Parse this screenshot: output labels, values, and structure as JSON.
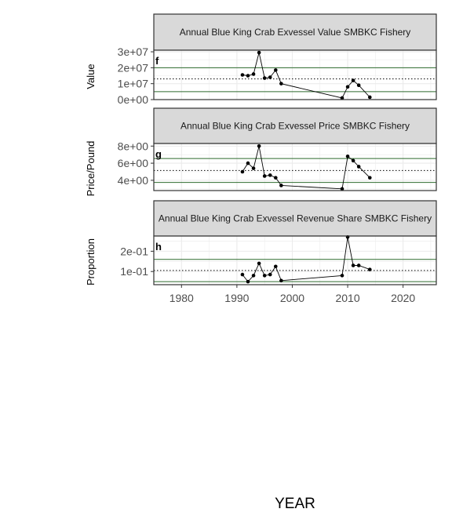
{
  "xlabel": "YEAR",
  "x_ticks": [
    1980,
    1990,
    2000,
    2010,
    2020
  ],
  "xlim": [
    1975,
    2026
  ],
  "colors": {
    "hline": "#2e6b2e",
    "mean_line": "#000000",
    "series": "#000000",
    "strip_fill": "#d9d9d9",
    "grid": "#ebebeb"
  },
  "chart_data": [
    {
      "type": "line",
      "title": "Annual Blue King Crab Exvessel Value SMBKC Fishery",
      "title_lines": [
        "Annual Blue King Crab Exvessel Value SMBKC Fishery"
      ],
      "tag": "f",
      "ylabel": "Value",
      "ylim": [
        0,
        31000000
      ],
      "y_ticks": [
        0,
        10000000,
        20000000,
        30000000
      ],
      "y_tick_labels": [
        "0e+00",
        "1e+07",
        "2e+07",
        "3e+07"
      ],
      "ref_lines": [
        5000000,
        20000000
      ],
      "mean_line": 13000000,
      "x": [
        1991,
        1992,
        1993,
        1994,
        1995,
        1996,
        1997,
        1998,
        2009,
        2010,
        2011,
        2012,
        2014
      ],
      "y": [
        15500000,
        15000000,
        16000000,
        29500000,
        13500000,
        14000000,
        18500000,
        10000000,
        1000000,
        8000000,
        12000000,
        9000000,
        1500000
      ]
    },
    {
      "type": "line",
      "title": "Annual Blue King Crab Exvessel Price SMBKC Fishery",
      "title_lines": [
        "Annual Blue King Crab Exvessel Price SMBKC Fishery"
      ],
      "tag": "g",
      "ylabel": "Price/Pound",
      "ylim": [
        2.8,
        8.3
      ],
      "y_ticks": [
        4,
        6,
        8
      ],
      "y_tick_labels": [
        "4e+00",
        "6e+00",
        "8e+00"
      ],
      "ref_lines": [
        3.75,
        6.55
      ],
      "mean_line": 5.15,
      "x": [
        1991,
        1992,
        1993,
        1994,
        1995,
        1996,
        1997,
        1998,
        2009,
        2010,
        2011,
        2012,
        2014
      ],
      "y": [
        5.0,
        6.0,
        5.4,
        8.0,
        4.5,
        4.6,
        4.3,
        3.4,
        3.0,
        6.8,
        6.3,
        5.6,
        4.3
      ]
    },
    {
      "type": "line",
      "title": "Annual Blue King Crab Exvessel Revenue Share SMBKC Fishery",
      "title_lines": [
        "Annual Blue King Crab Exvessel Revenue Share SMBKC Fishery"
      ],
      "tag": "h",
      "ylabel": "Proportion",
      "ylim": [
        0.035,
        0.275
      ],
      "y_ticks": [
        0.1,
        0.2
      ],
      "y_tick_labels": [
        "1e-01",
        "2e-01"
      ],
      "ref_lines": [
        0.05,
        0.16
      ],
      "mean_line": 0.105,
      "x": [
        1991,
        1992,
        1993,
        1994,
        1995,
        1996,
        1997,
        1998,
        2009,
        2010,
        2011,
        2012,
        2014
      ],
      "y": [
        0.085,
        0.05,
        0.08,
        0.14,
        0.08,
        0.085,
        0.125,
        0.055,
        0.08,
        0.27,
        0.13,
        0.13,
        0.11
      ]
    }
  ]
}
